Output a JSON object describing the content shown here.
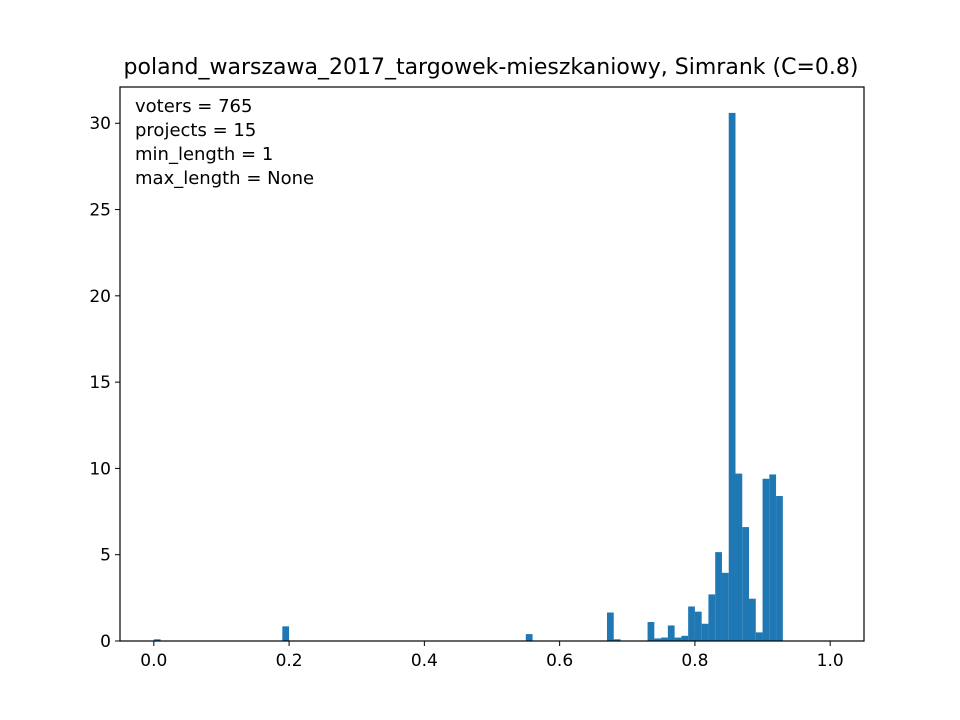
{
  "chart_data": {
    "type": "bar",
    "title": "poland_warszawa_2017_targowek-mieszkaniowy, Simrank (C=0.8)",
    "xlabel": "",
    "ylabel": "",
    "xlim": [
      -0.05,
      1.05
    ],
    "ylim": [
      0,
      32.1
    ],
    "bin_width": 0.01,
    "bar_color": "#1f77b4",
    "grid": false,
    "xticks": [
      0.0,
      0.2,
      0.4,
      0.6,
      0.8,
      1.0
    ],
    "xtick_labels": [
      "0.0",
      "0.2",
      "0.4",
      "0.6",
      "0.8",
      "1.0"
    ],
    "yticks": [
      0,
      5,
      10,
      15,
      20,
      25,
      30
    ],
    "ytick_labels": [
      "0",
      "5",
      "10",
      "15",
      "20",
      "25",
      "30"
    ],
    "annotations": [
      "voters = 765",
      "projects = 15",
      "min_length = 1",
      "max_length = None"
    ],
    "bins": [
      {
        "x": 0.0,
        "height": 0.1
      },
      {
        "x": 0.19,
        "height": 0.85
      },
      {
        "x": 0.55,
        "height": 0.4
      },
      {
        "x": 0.67,
        "height": 1.65
      },
      {
        "x": 0.68,
        "height": 0.1
      },
      {
        "x": 0.73,
        "height": 1.1
      },
      {
        "x": 0.74,
        "height": 0.15
      },
      {
        "x": 0.75,
        "height": 0.2
      },
      {
        "x": 0.76,
        "height": 0.9
      },
      {
        "x": 0.77,
        "height": 0.2
      },
      {
        "x": 0.78,
        "height": 0.3
      },
      {
        "x": 0.79,
        "height": 2.0
      },
      {
        "x": 0.8,
        "height": 1.7
      },
      {
        "x": 0.81,
        "height": 1.0
      },
      {
        "x": 0.82,
        "height": 2.7
      },
      {
        "x": 0.83,
        "height": 5.15
      },
      {
        "x": 0.84,
        "height": 3.95
      },
      {
        "x": 0.85,
        "height": 30.6
      },
      {
        "x": 0.86,
        "height": 9.7
      },
      {
        "x": 0.87,
        "height": 6.6
      },
      {
        "x": 0.88,
        "height": 2.45
      },
      {
        "x": 0.89,
        "height": 0.5
      },
      {
        "x": 0.9,
        "height": 9.4
      },
      {
        "x": 0.91,
        "height": 9.65
      },
      {
        "x": 0.92,
        "height": 8.4
      }
    ]
  }
}
